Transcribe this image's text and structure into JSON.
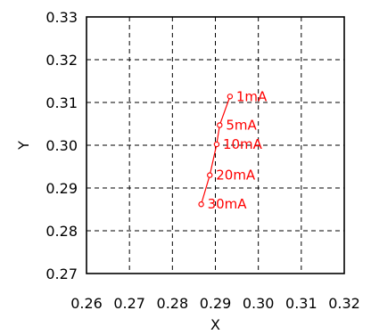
{
  "chart_data": {
    "type": "line",
    "title": "",
    "xlabel": "X",
    "ylabel": "Y",
    "xlim": [
      0.26,
      0.32
    ],
    "ylim": [
      0.27,
      0.33
    ],
    "xticks": [
      "0.26",
      "0.27",
      "0.28",
      "0.29",
      "0.30",
      "0.31",
      "0.32"
    ],
    "yticks": [
      "0.27",
      "0.28",
      "0.29",
      "0.30",
      "0.31",
      "0.32",
      "0.33"
    ],
    "grid": true,
    "series_color": "#ff0000",
    "series": [
      {
        "points": [
          {
            "label": "1mA",
            "x": 0.2934,
            "y": 0.3114
          },
          {
            "label": "5mA",
            "x": 0.291,
            "y": 0.3047
          },
          {
            "label": "10mA",
            "x": 0.2903,
            "y": 0.3002
          },
          {
            "label": "20mA",
            "x": 0.2887,
            "y": 0.293
          },
          {
            "label": "30mA",
            "x": 0.2867,
            "y": 0.2862
          }
        ]
      }
    ]
  }
}
